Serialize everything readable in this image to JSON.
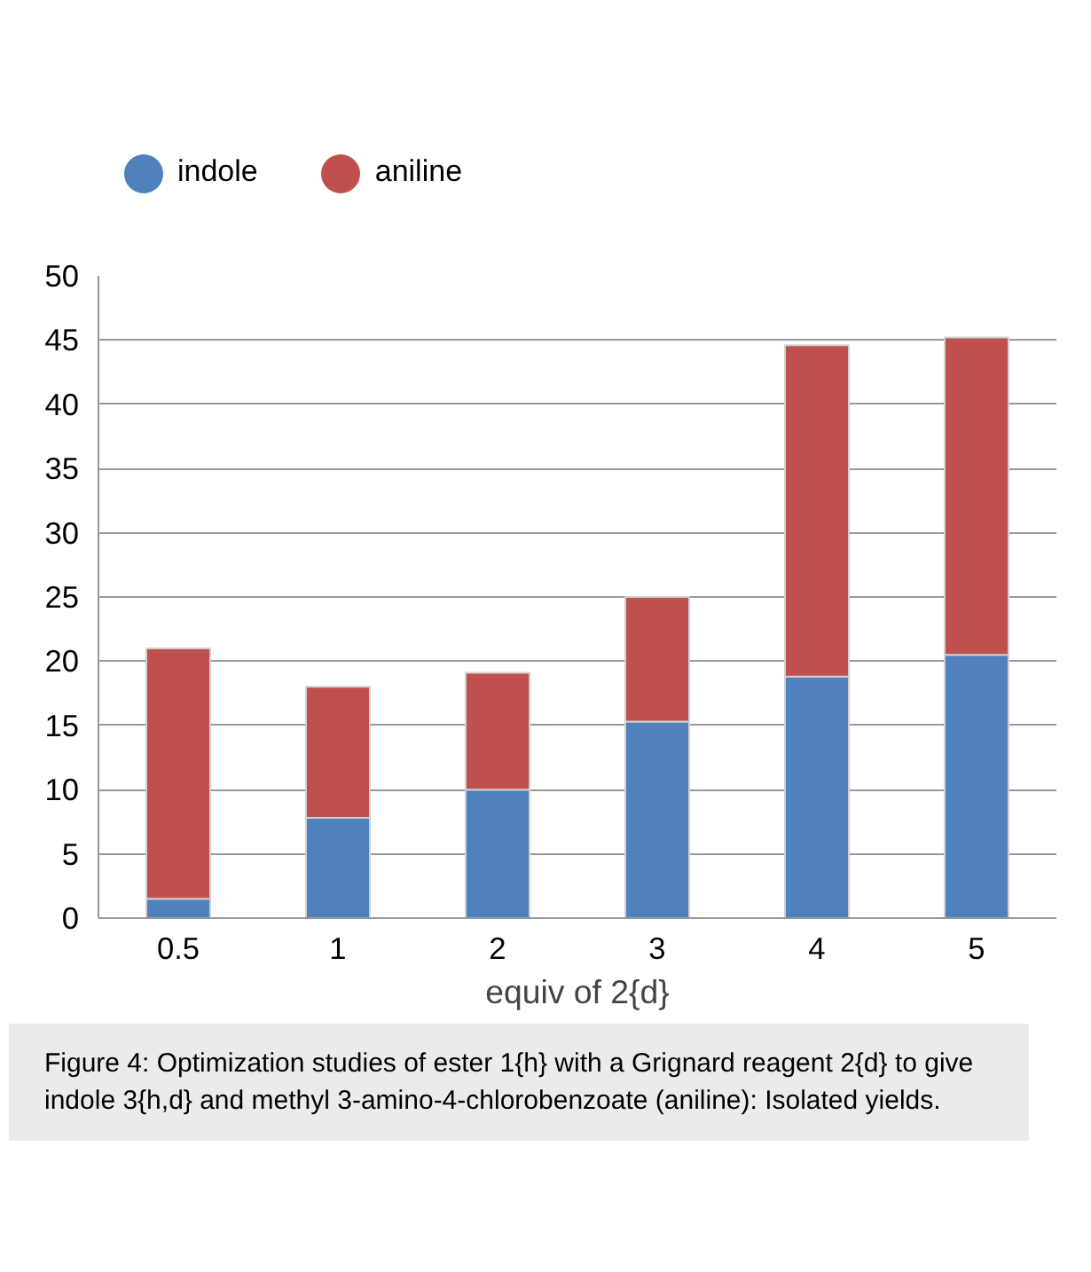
{
  "chart_data": {
    "type": "bar",
    "stacked": true,
    "categories": [
      "0.5",
      "1",
      "2",
      "3",
      "4",
      "5"
    ],
    "series": [
      {
        "name": "indole",
        "color": "#4f81bd",
        "values": [
          1.5,
          7.8,
          10,
          15.3,
          18.8,
          20.5
        ]
      },
      {
        "name": "aniline",
        "color": "#c0504d",
        "values": [
          19.5,
          10.2,
          9.1,
          9.7,
          25.8,
          24.7
        ]
      }
    ],
    "xlabel": "equiv of 2{d}",
    "ylim": [
      0,
      50
    ],
    "yticks": [
      0,
      5,
      10,
      15,
      20,
      25,
      30,
      35,
      40,
      45,
      50
    ],
    "grid": "y",
    "legend": "top left",
    "annotations": [
      "Figure 4: Optimization studies of ester 1{h} with a Grignard reagent 2{d} to give indole 3{h,d} and methyl 3-amino-4-chlorobenzoate (aniline): Isolated yields."
    ]
  }
}
